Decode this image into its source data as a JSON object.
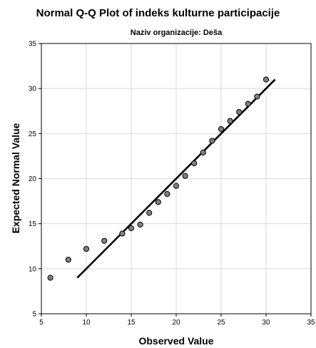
{
  "chart_data": {
    "type": "scatter",
    "title": "Normal Q-Q Plot of indeks kulturne participacije",
    "subtitle": "Naziv organizacije: Deša",
    "xlabel": "Observed Value",
    "ylabel": "Expected Normal Value",
    "xlim": [
      5,
      35
    ],
    "ylim": [
      5,
      35
    ],
    "xticks": [
      5,
      10,
      15,
      20,
      25,
      30,
      35
    ],
    "yticks": [
      5,
      10,
      15,
      20,
      25,
      30,
      35
    ],
    "grid": true,
    "points": [
      {
        "x": 6,
        "y": 9.0
      },
      {
        "x": 8,
        "y": 11.0
      },
      {
        "x": 10,
        "y": 12.2
      },
      {
        "x": 12,
        "y": 13.1
      },
      {
        "x": 14,
        "y": 13.9
      },
      {
        "x": 15,
        "y": 14.5
      },
      {
        "x": 16,
        "y": 14.9
      },
      {
        "x": 17,
        "y": 16.2
      },
      {
        "x": 18,
        "y": 17.4
      },
      {
        "x": 19,
        "y": 18.3
      },
      {
        "x": 20,
        "y": 19.2
      },
      {
        "x": 21,
        "y": 20.3
      },
      {
        "x": 22,
        "y": 21.7
      },
      {
        "x": 23,
        "y": 22.9
      },
      {
        "x": 24,
        "y": 24.2
      },
      {
        "x": 25,
        "y": 25.5
      },
      {
        "x": 26,
        "y": 26.4
      },
      {
        "x": 27,
        "y": 27.4
      },
      {
        "x": 28,
        "y": 28.3
      },
      {
        "x": 29,
        "y": 29.1
      },
      {
        "x": 30,
        "y": 31.0
      }
    ],
    "reference_line": {
      "x1": 9,
      "y1": 9,
      "x2": 31,
      "y2": 31
    },
    "colors": {
      "point_fill": "#808080",
      "point_stroke": "#000000",
      "line": "#000000",
      "grid": "#d9d9d9"
    }
  }
}
